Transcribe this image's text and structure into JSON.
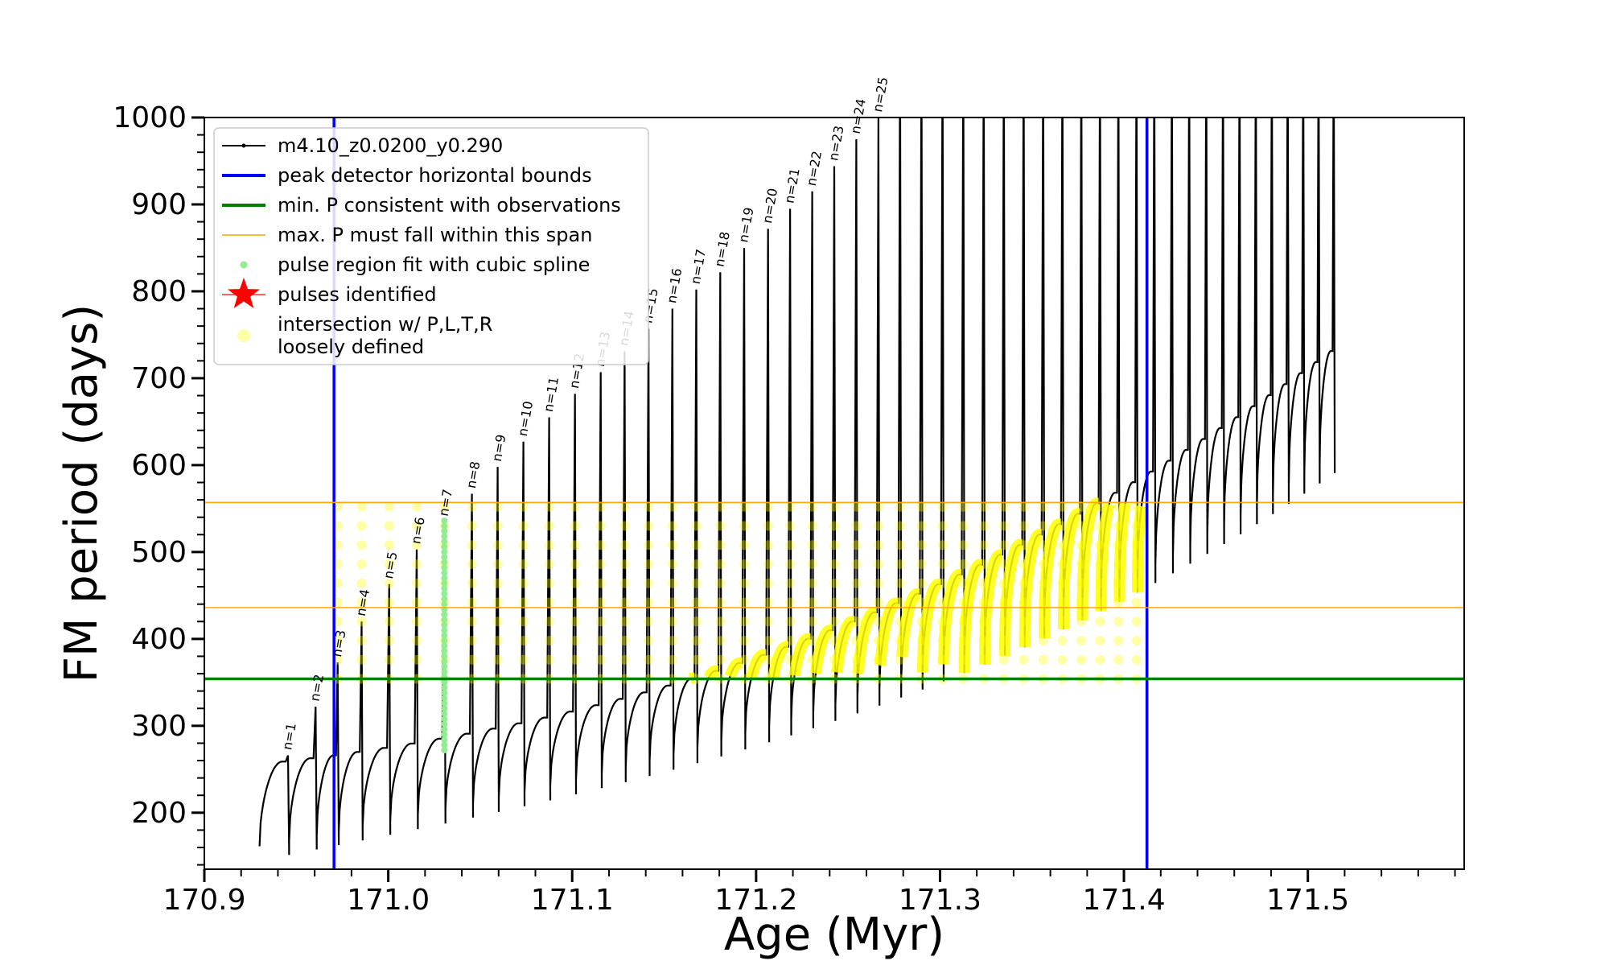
{
  "chart_data": {
    "type": "line",
    "title": "",
    "xlabel": "Age (Myr)",
    "ylabel": "FM period (days)",
    "xlim": [
      170.9,
      171.585
    ],
    "ylim": [
      135,
      1000
    ],
    "x_ticks": [
      170.9,
      171.0,
      171.1,
      171.2,
      171.3,
      171.4,
      171.5
    ],
    "x_tick_labels": [
      "170.9",
      "171.0",
      "171.1",
      "171.2",
      "171.3",
      "171.4",
      "171.5"
    ],
    "y_ticks": [
      200,
      300,
      400,
      500,
      600,
      700,
      800,
      900,
      1000
    ],
    "y_tick_labels": [
      "200",
      "300",
      "400",
      "500",
      "600",
      "700",
      "800",
      "900",
      "1000"
    ],
    "x_minor_step": 0.02,
    "y_minor_step": 20,
    "legend_position": "upper-left",
    "legend": [
      {
        "label": "m4.10_z0.0200_y0.290",
        "kind": "line-dot",
        "color": "#000000"
      },
      {
        "label": "peak detector horizontal bounds",
        "kind": "line",
        "color": "#0000ff"
      },
      {
        "label": "min. P consistent with observations",
        "kind": "line",
        "color": "#008000"
      },
      {
        "label": "max. P must fall within this span",
        "kind": "thin-line",
        "color": "#ffa500"
      },
      {
        "label": "pulse region fit with cubic spline",
        "kind": "dot",
        "color": "#90ee90"
      },
      {
        "label": "pulses identified",
        "kind": "star",
        "color": "#ff0000"
      },
      {
        "label": "intersection w/ P,L,T,R",
        "label2": "loosely defined",
        "kind": "big-dot",
        "color": "#ffff00"
      }
    ],
    "series_colors": {
      "main": "#000000",
      "bounds": "#0000ff",
      "min_p": "#008000",
      "max_p": "#ffa500",
      "spline": "#90ee90",
      "intersection": "#ffff00"
    },
    "vertical_bounds_x": [
      170.9705,
      171.4125
    ],
    "min_period_line_y": 354,
    "max_period_span_y": [
      436,
      557
    ],
    "pulses": {
      "labels": [
        "n=1",
        "n=2",
        "n=3",
        "n=4",
        "n=5",
        "n=6",
        "n=7",
        "n=8",
        "n=9",
        "n=10",
        "n=11",
        "n=12",
        "n=13",
        "n=14",
        "n=15",
        "n=16",
        "n=17",
        "n=18",
        "n=19",
        "n=20",
        "n=21",
        "n=22",
        "n=23",
        "n=24",
        "n=25"
      ],
      "peak_age": [
        170.9455,
        170.9605,
        170.9725,
        170.9855,
        171.0005,
        171.0155,
        171.0305,
        171.0455,
        171.0595,
        171.0735,
        171.0875,
        171.1015,
        171.1155,
        171.1285,
        171.1415,
        171.1545,
        171.1675,
        171.1805,
        171.1935,
        171.2065,
        171.2185,
        171.2305,
        171.2425,
        171.2545,
        171.2665
      ],
      "peak_period": [
        266,
        322,
        373,
        420,
        463,
        503,
        535,
        567,
        598,
        627,
        655,
        682,
        707,
        731,
        757,
        780,
        802,
        822,
        850,
        872,
        895,
        915,
        944,
        975,
        1000
      ]
    }
  }
}
